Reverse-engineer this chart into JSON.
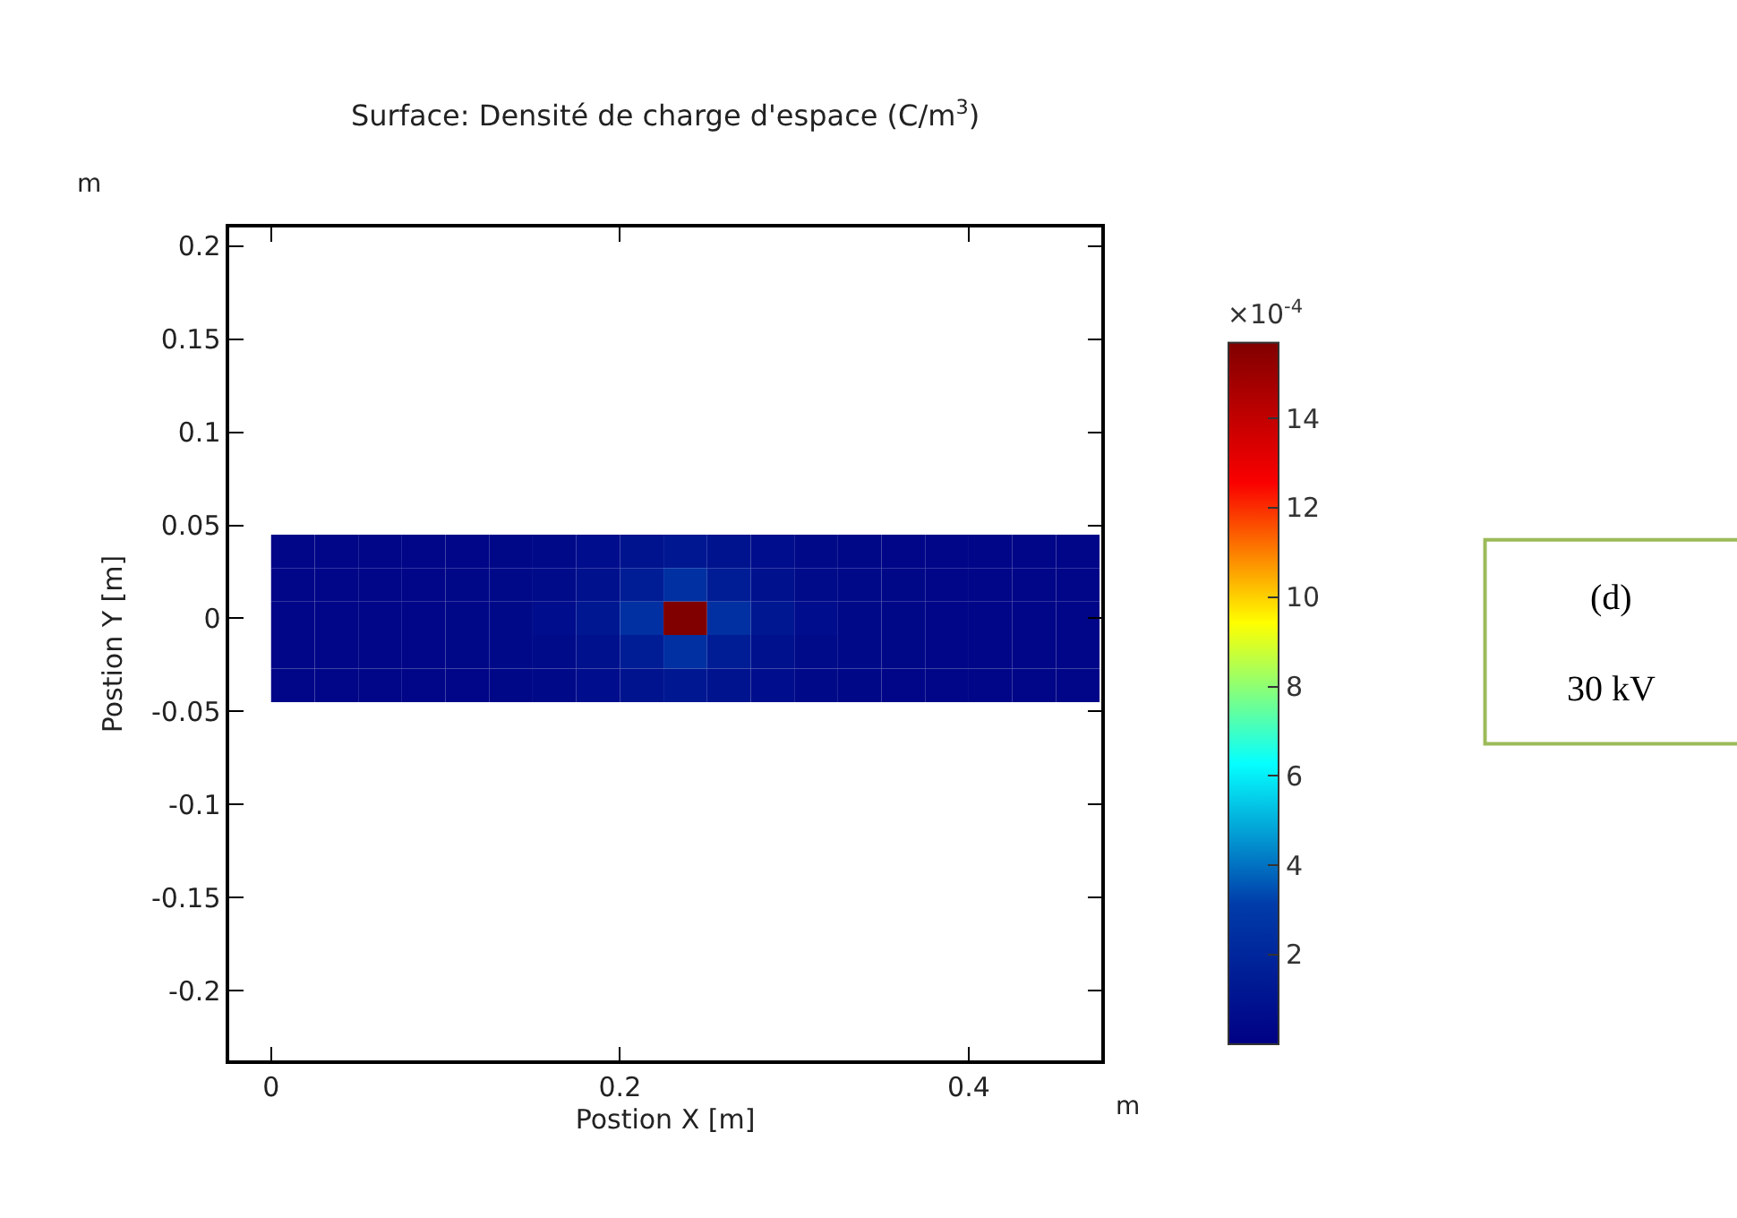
{
  "chart_data": {
    "type": "heatmap",
    "title": "Surface: Densité de charge d'espace (C/m$^{3}$)",
    "xlabel": "Postion X [m]",
    "ylabel": "Postion Y [m]",
    "clabel": "×10$^{-4}$",
    "x": [
      0.0125,
      0.0375,
      0.0625,
      0.0875,
      0.1125,
      0.1375,
      0.1625,
      0.1875,
      0.2125,
      0.2375,
      0.2625,
      0.2875,
      0.3125,
      0.3375,
      0.3625,
      0.3875,
      0.4125,
      0.4375,
      0.4625
    ],
    "y": [
      0.036,
      0.018,
      0,
      -0.018,
      -0.036
    ],
    "cells": [
      [
        0.3,
        0.3,
        0.3,
        0.3,
        0.3,
        0.4,
        0.5,
        0.7,
        1.0,
        1.2,
        1.0,
        0.7,
        0.5,
        0.4,
        0.3,
        0.3,
        0.3,
        0.3,
        0.3
      ],
      [
        0.3,
        0.3,
        0.3,
        0.3,
        0.4,
        0.5,
        0.6,
        0.9,
        1.5,
        2.5,
        1.5,
        0.9,
        0.6,
        0.5,
        0.4,
        0.3,
        0.3,
        0.3,
        0.3
      ],
      [
        0.3,
        0.3,
        0.3,
        0.3,
        0.4,
        0.5,
        0.7,
        1.2,
        2.5,
        15.7,
        2.5,
        1.2,
        0.7,
        0.5,
        0.4,
        0.3,
        0.3,
        0.3,
        0.3
      ],
      [
        0.3,
        0.3,
        0.3,
        0.3,
        0.4,
        0.5,
        0.6,
        0.9,
        1.5,
        2.5,
        1.5,
        0.9,
        0.6,
        0.5,
        0.4,
        0.3,
        0.3,
        0.3,
        0.3
      ],
      [
        0.3,
        0.3,
        0.3,
        0.3,
        0.3,
        0.4,
        0.5,
        0.7,
        1.0,
        1.2,
        1.0,
        0.7,
        0.5,
        0.4,
        0.3,
        0.3,
        0.3,
        0.3,
        0.3
      ]
    ],
    "clim": [
      0,
      15.7
    ],
    "cticks": [
      2,
      4,
      6,
      8,
      10,
      12,
      14
    ],
    "xlim": [
      -0.024,
      0.476
    ],
    "xticks": [
      0,
      0.2,
      0.4
    ],
    "ylim": [
      -0.2375,
      0.21
    ],
    "yticks": [
      -0.2,
      -0.15,
      -0.1,
      -0.05,
      0,
      0.05,
      0.1,
      0.15,
      0.2
    ],
    "annotations": [
      "m",
      "m",
      "(d)",
      "30 kV"
    ]
  }
}
